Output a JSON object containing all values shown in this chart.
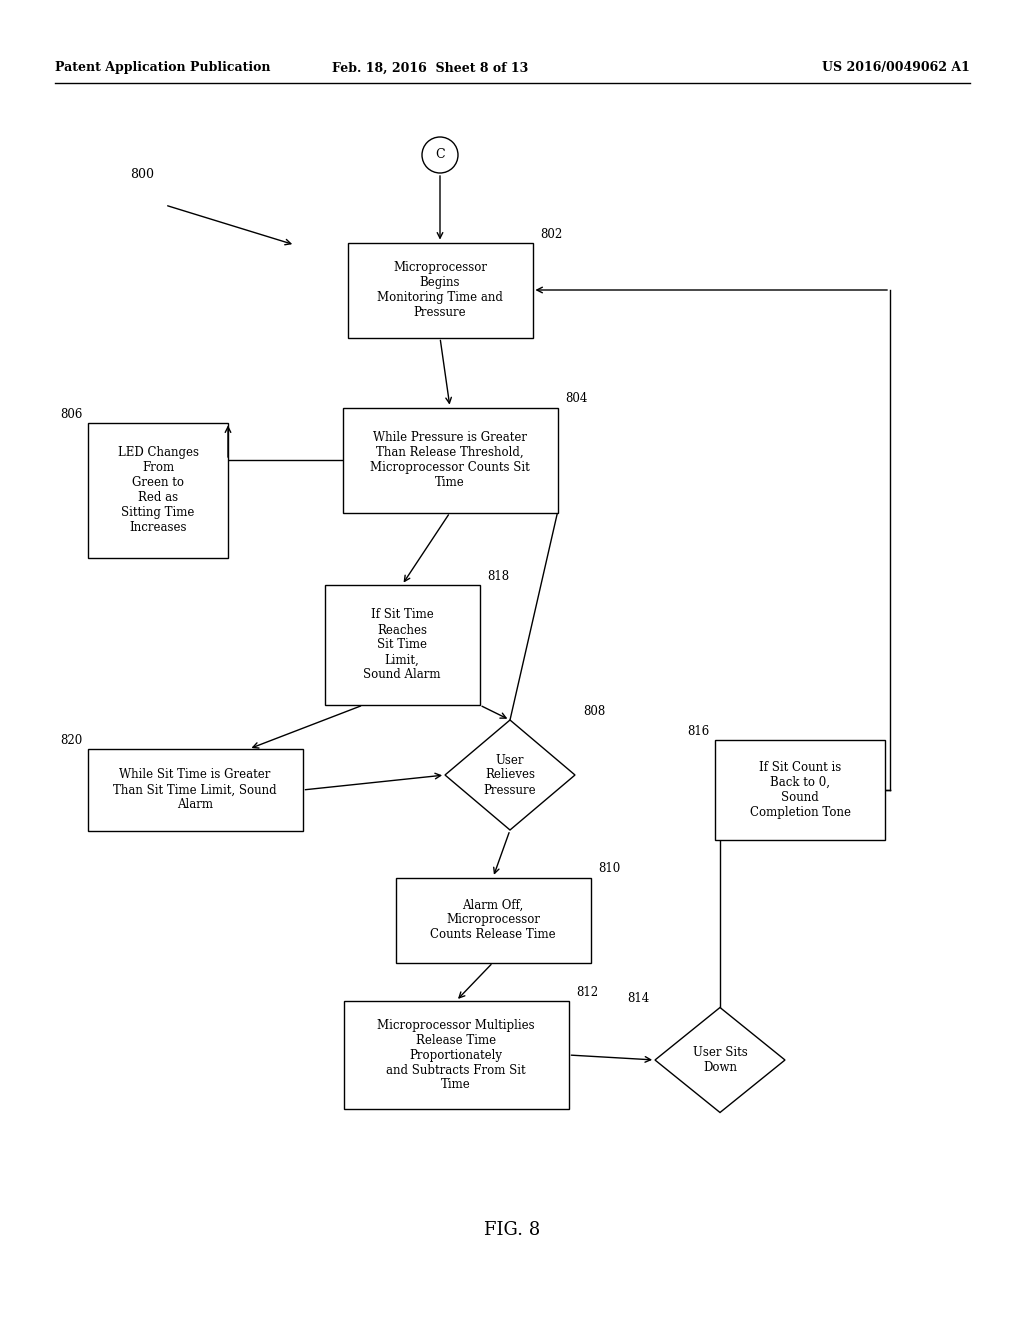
{
  "bg_color": "#ffffff",
  "header_left": "Patent Application Publication",
  "header_mid": "Feb. 18, 2016  Sheet 8 of 13",
  "header_right": "US 2016/0049062 A1",
  "fig_label": "FIG. 8",
  "node_802_label": "Microprocessor\nBegins\nMonitoring Time and\nPressure",
  "node_804_label": "While Pressure is Greater\nThan Release Threshold,\nMicroprocessor Counts Sit\nTime",
  "node_806_label": "LED Changes\nFrom\nGreen to\nRed as\nSitting Time\nIncreases",
  "node_818_label": "If Sit Time\nReaches\nSit Time\nLimit,\nSound Alarm",
  "node_820_label": "While Sit Time is Greater\nThan Sit Time Limit, Sound\nAlarm",
  "node_808_label": "User\nRelieves\nPressure",
  "node_816_label": "If Sit Count is\nBack to 0,\nSound\nCompletion Tone",
  "node_810_label": "Alarm Off,\nMicroprocessor\nCounts Release Time",
  "node_812_label": "Microprocessor Multiplies\nRelease Time\nProportionately\nand Subtracts From Sit\nTime",
  "node_814_label": "User Sits\nDown",
  "lw": 1.0,
  "fs": 8.5,
  "header_fs": 9.0,
  "figlabel_fs": 13
}
